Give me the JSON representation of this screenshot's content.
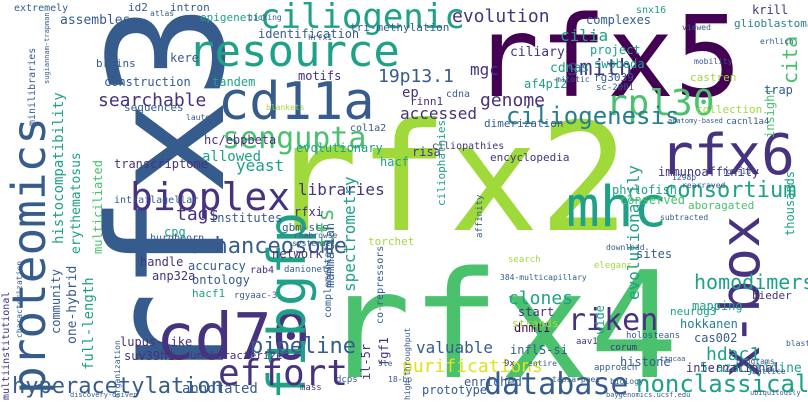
{
  "colors": {
    "lime": "#9fda3a",
    "green": "#4ac16d",
    "teal": "#1fa187",
    "cyan": "#277f8e",
    "blue": "#365c8d",
    "indigo": "#46327e",
    "purple": "#440154",
    "yellow": "#dde318"
  },
  "words": [
    {
      "text": "rfx3",
      "color": "blue",
      "vertical": true
    },
    {
      "text": "rfx5",
      "color": "purple",
      "vertical": false
    },
    {
      "text": "rfx2",
      "color": "lime",
      "vertical": false
    },
    {
      "text": "rfx4",
      "color": "green",
      "vertical": false
    },
    {
      "text": "resource",
      "color": "teal",
      "vertical": false
    },
    {
      "text": "cd11a",
      "color": "blue",
      "vertical": false
    },
    {
      "text": "cd70",
      "color": "indigo",
      "vertical": false
    },
    {
      "text": "proteomics",
      "color": "blue",
      "vertical": true
    },
    {
      "text": "f1bgfp",
      "color": "teal",
      "vertical": true
    },
    {
      "text": "mhc",
      "color": "teal",
      "vertical": false
    },
    {
      "text": "x-box",
      "color": "indigo",
      "vertical": true
    },
    {
      "text": "rfx6",
      "color": "indigo",
      "vertical": false
    },
    {
      "text": "bioplex",
      "color": "indigo",
      "vertical": false
    },
    {
      "text": "effort",
      "color": "indigo",
      "vertical": false
    },
    {
      "text": "database",
      "color": "blue",
      "vertical": false
    },
    {
      "text": "riken",
      "color": "indigo",
      "vertical": false
    },
    {
      "text": "ciliogenic",
      "color": "teal",
      "vertical": false
    },
    {
      "text": "rpl30",
      "color": "green",
      "vertical": false
    },
    {
      "text": "sengupta",
      "color": "green",
      "vertical": false
    },
    {
      "text": "ciliogenesis",
      "color": "cyan",
      "vertical": false
    },
    {
      "text": "enhanceosome",
      "color": "blue",
      "vertical": false
    },
    {
      "text": "hyperacetylation",
      "color": "blue",
      "vertical": false
    },
    {
      "text": "nonclassical",
      "color": "teal",
      "vertical": false
    },
    {
      "text": "pipeline",
      "color": "blue",
      "vertical": false
    },
    {
      "text": "purifications",
      "color": "yellow",
      "vertical": false
    },
    {
      "text": "consortium",
      "color": "teal",
      "vertical": false
    },
    {
      "text": "homodimers",
      "color": "teal",
      "vertical": false
    },
    {
      "text": "evolution",
      "color": "indigo",
      "vertical": false
    },
    {
      "text": "smith",
      "color": "indigo",
      "vertical": false
    },
    {
      "text": "genome",
      "color": "indigo",
      "vertical": false
    },
    {
      "text": "19p13.1",
      "color": "blue",
      "vertical": false
    },
    {
      "text": "searchable",
      "color": "indigo",
      "vertical": false
    },
    {
      "text": "accessed",
      "color": "indigo",
      "vertical": false
    },
    {
      "text": "annotated",
      "color": "blue",
      "vertical": false
    },
    {
      "text": "tags",
      "color": "indigo",
      "vertical": false
    },
    {
      "text": "yeast",
      "color": "teal",
      "vertical": false
    },
    {
      "text": "libraries",
      "color": "indigo",
      "vertical": false
    },
    {
      "text": "valuable",
      "color": "blue",
      "vertical": false
    },
    {
      "text": "clones",
      "color": "teal",
      "vertical": false
    },
    {
      "text": "hdac1",
      "color": "teal",
      "vertical": false
    },
    {
      "text": "5-azacytidine",
      "color": "teal",
      "vertical": false
    },
    {
      "text": "tfs",
      "color": "green",
      "vertical": true
    },
    {
      "text": "spectrometry",
      "color": "teal",
      "vertical": true
    },
    {
      "text": "evolutionarily",
      "color": "teal",
      "vertical": true
    },
    {
      "text": "cilia",
      "color": "teal",
      "vertical": false
    },
    {
      "text": "mgc",
      "color": "indigo",
      "vertical": false
    },
    {
      "text": "ep",
      "color": "indigo",
      "vertical": false
    },
    {
      "text": "cdnas",
      "color": "teal",
      "vertical": false
    },
    {
      "text": "ciliary",
      "color": "indigo",
      "vertical": false
    },
    {
      "text": "histocompatibility",
      "color": "teal",
      "vertical": true
    },
    {
      "text": "erythematosus",
      "color": "teal",
      "vertical": true
    },
    {
      "text": "multiciliated",
      "color": "green",
      "vertical": true
    },
    {
      "text": "full-length",
      "color": "teal",
      "vertical": true
    },
    {
      "text": "one-hybrid",
      "color": "blue",
      "vertical": true
    },
    {
      "text": "community",
      "color": "blue",
      "vertical": true
    },
    {
      "text": "il-5r",
      "color": "indigo",
      "vertical": true
    },
    {
      "text": "fgf1",
      "color": "indigo",
      "vertical": true
    },
    {
      "text": "mammalian",
      "color": "blue",
      "vertical": true
    },
    {
      "text": "cita",
      "color": "green",
      "vertical": true
    },
    {
      "text": "insight",
      "color": "green",
      "vertical": true
    },
    {
      "text": "krill",
      "color": "indigo",
      "vertical": false
    },
    {
      "text": "glioblastoma",
      "color": "cyan",
      "vertical": false
    },
    {
      "text": "allowed",
      "color": "teal",
      "vertical": false
    },
    {
      "text": "hc/ebpbeta",
      "color": "indigo",
      "vertical": false
    },
    {
      "text": "lupus-like",
      "color": "indigo",
      "vertical": false
    },
    {
      "text": "suv39h1",
      "color": "indigo",
      "vertical": false
    },
    {
      "text": "uncharacterized",
      "color": "indigo",
      "vertical": false
    },
    {
      "text": "dnmt1",
      "color": "purple",
      "vertical": false
    },
    {
      "text": "histone",
      "color": "blue",
      "vertical": false
    },
    {
      "text": "enriched",
      "color": "blue",
      "vertical": false
    },
    {
      "text": "prototype",
      "color": "blue",
      "vertical": false
    },
    {
      "text": "international",
      "color": "indigo",
      "vertical": false
    },
    {
      "text": "hokkanen",
      "color": "cyan",
      "vertical": false
    },
    {
      "text": "cas002",
      "color": "blue",
      "vertical": false
    },
    {
      "text": "mapping",
      "color": "teal",
      "vertical": false
    },
    {
      "text": "neurog3",
      "color": "teal",
      "vertical": false
    },
    {
      "text": "wide",
      "color": "teal",
      "vertical": true
    },
    {
      "text": "rinn1",
      "color": "indigo",
      "vertical": false
    },
    {
      "text": "immunoaffinity",
      "color": "indigo",
      "vertical": false
    },
    {
      "text": "aboragated",
      "color": "green",
      "vertical": false
    },
    {
      "text": "phylofish",
      "color": "teal",
      "vertical": false
    },
    {
      "text": "conserved",
      "color": "green",
      "vertical": false
    },
    {
      "text": "risa",
      "color": "indigo",
      "vertical": false
    },
    {
      "text": "encyclopedia",
      "color": "indigo",
      "vertical": false
    },
    {
      "text": "evolutionary",
      "color": "teal",
      "vertical": false
    },
    {
      "text": "dimerization",
      "color": "blue",
      "vertical": false
    },
    {
      "text": "hacf",
      "color": "teal",
      "vertical": false
    },
    {
      "text": "ciliopathies",
      "color": "indigo",
      "vertical": false
    },
    {
      "text": "ciliophathies",
      "color": "teal",
      "vertical": true
    },
    {
      "text": "sites",
      "color": "blue",
      "vertical": false
    },
    {
      "text": "project",
      "color": "teal",
      "vertical": false
    },
    {
      "text": "swoboda",
      "color": "teal",
      "vertical": false
    },
    {
      "text": "rg3039",
      "color": "blue",
      "vertical": false
    },
    {
      "text": "sc-2001",
      "color": "blue",
      "vertical": false
    },
    {
      "text": "af4p12",
      "color": "teal",
      "vertical": false
    },
    {
      "text": "complexes",
      "color": "blue",
      "vertical": false
    },
    {
      "text": "snx16",
      "color": "teal",
      "vertical": false
    },
    {
      "text": "identification",
      "color": "blue",
      "vertical": false
    },
    {
      "text": "tri-methylation",
      "color": "blue",
      "vertical": false
    },
    {
      "text": "motifs",
      "color": "indigo",
      "vertical": false
    },
    {
      "text": "tandem",
      "color": "teal",
      "vertical": false
    },
    {
      "text": "construction",
      "color": "blue",
      "vertical": false
    },
    {
      "text": "transcriptome",
      "color": "indigo",
      "vertical": false
    },
    {
      "text": "sequences",
      "color": "blue",
      "vertical": false
    },
    {
      "text": "kere",
      "color": "blue",
      "vertical": false
    },
    {
      "text": "brains",
      "color": "blue",
      "vertical": false
    },
    {
      "text": "assembles",
      "color": "blue",
      "vertical": false
    },
    {
      "text": "extremely",
      "color": "blue",
      "vertical": false
    },
    {
      "text": "id2",
      "color": "blue",
      "vertical": false
    },
    {
      "text": "intron",
      "color": "blue",
      "vertical": false
    },
    {
      "text": "epigenetic",
      "color": "teal",
      "vertical": false
    },
    {
      "text": "atlas",
      "color": "blue",
      "vertical": false
    },
    {
      "text": "picking",
      "color": "blue",
      "vertical": false
    },
    {
      "text": "viewed",
      "color": "blue",
      "vertical": false
    },
    {
      "text": "mobility",
      "color": "blue",
      "vertical": false
    },
    {
      "text": "castren",
      "color": "lime",
      "vertical": false
    },
    {
      "text": "collection",
      "color": "lime",
      "vertical": false
    },
    {
      "text": "trap",
      "color": "blue",
      "vertical": false
    },
    {
      "text": "cacnl1a4",
      "color": "blue",
      "vertical": false
    },
    {
      "text": "anatomy-based",
      "color": "blue",
      "vertical": false
    },
    {
      "text": "fgf-1b",
      "color": "blue",
      "vertical": false
    },
    {
      "text": "1298p",
      "color": "blue",
      "vertical": false
    },
    {
      "text": "rearrayed",
      "color": "blue",
      "vertical": false
    },
    {
      "text": "subtracted",
      "color": "blue",
      "vertical": false
    },
    {
      "text": "thousands",
      "color": "teal",
      "vertical": true
    },
    {
      "text": "accuracy",
      "color": "blue",
      "vertical": false
    },
    {
      "text": "ontology",
      "color": "blue",
      "vertical": false
    },
    {
      "text": "hacf1",
      "color": "teal",
      "vertical": false
    },
    {
      "text": "rgyaac-3",
      "color": "blue",
      "vertical": false
    },
    {
      "text": "anp32a",
      "color": "indigo",
      "vertical": false
    },
    {
      "text": "handle",
      "color": "indigo",
      "vertical": false
    },
    {
      "text": "institutes",
      "color": "blue",
      "vertical": false
    },
    {
      "text": "gbm-scs",
      "color": "blue",
      "vertical": false
    },
    {
      "text": "network",
      "color": "indigo",
      "vertical": false
    },
    {
      "text": "torchet",
      "color": "lime",
      "vertical": false
    },
    {
      "text": "rab4",
      "color": "indigo",
      "vertical": false
    },
    {
      "text": "danionet",
      "color": "blue",
      "vertical": false
    },
    {
      "text": "complementary",
      "color": "blue",
      "vertical": true
    },
    {
      "text": "inflS-si",
      "color": "blue",
      "vertical": false
    },
    {
      "text": "strands",
      "color": "lime",
      "vertical": false
    },
    {
      "text": "start",
      "color": "indigo",
      "vertical": false
    },
    {
      "text": "aav1",
      "color": "indigo",
      "vertical": false
    },
    {
      "text": "corum",
      "color": "indigo",
      "vertical": false
    },
    {
      "text": "holosteans",
      "color": "blue",
      "vertical": false
    },
    {
      "text": "bieder",
      "color": "indigo",
      "vertical": false
    },
    {
      "text": "programs",
      "color": "blue",
      "vertical": false
    },
    {
      "text": "blastema",
      "color": "blue",
      "vertical": false
    },
    {
      "text": "approach",
      "color": "blue",
      "vertical": false
    },
    {
      "text": "tapia-paez",
      "color": "blue",
      "vertical": false
    },
    {
      "text": "co-repressors",
      "color": "blue",
      "vertical": true
    },
    {
      "text": "cpg",
      "color": "teal",
      "vertical": false
    },
    {
      "text": "rfxi",
      "color": "indigo",
      "vertical": false
    },
    {
      "text": "characterization",
      "color": "blue",
      "vertical": true
    },
    {
      "text": "multiinstitutional",
      "color": "indigo",
      "vertical": true
    },
    {
      "text": "minilibraries",
      "color": "blue",
      "vertical": true
    },
    {
      "text": "sugiannam-trapman",
      "color": "blue",
      "vertical": true
    },
    {
      "text": "col1a2",
      "color": "blue",
      "vertical": false
    },
    {
      "text": "blankets",
      "color": "lime",
      "vertical": false
    },
    {
      "text": "lauter",
      "color": "blue",
      "vertical": false
    },
    {
      "text": "hrfx1",
      "color": "blue",
      "vertical": false
    },
    {
      "text": "cdna",
      "color": "blue",
      "vertical": false
    },
    {
      "text": "mitotic",
      "color": "blue",
      "vertical": false
    },
    {
      "text": "erhlich",
      "color": "blue",
      "vertical": false
    },
    {
      "text": "mass",
      "color": "indigo",
      "vertical": false
    },
    {
      "text": "dcps",
      "color": "blue",
      "vertical": false
    },
    {
      "text": "18-bp",
      "color": "blue",
      "vertical": false
    },
    {
      "text": "high-throughput",
      "color": "blue",
      "vertical": true
    },
    {
      "text": "sle",
      "color": "blue",
      "vertical": false
    },
    {
      "text": "9x",
      "color": "indigo",
      "vertical": false
    },
    {
      "text": "entire",
      "color": "blue",
      "vertical": false
    },
    {
      "text": "384-multicapillary",
      "color": "blue",
      "vertical": false
    },
    {
      "text": "biology",
      "color": "blue",
      "vertical": false
    },
    {
      "text": "buttice",
      "color": "blue",
      "vertical": false
    },
    {
      "text": "ubiquitously",
      "color": "blue",
      "vertical": false
    },
    {
      "text": "ttgcaa",
      "color": "blue",
      "vertical": false
    },
    {
      "text": "organization",
      "color": "blue",
      "vertical": true
    },
    {
      "text": "intraflagellar",
      "color": "blue",
      "vertical": false
    },
    {
      "text": "burghoorn",
      "color": "blue",
      "vertical": false
    },
    {
      "text": "rnabrowse",
      "color": "blue",
      "vertical": false
    },
    {
      "text": "systematic",
      "color": "blue",
      "vertical": false
    },
    {
      "text": "affinity",
      "color": "blue",
      "vertical": true
    },
    {
      "text": "elegans",
      "color": "lime",
      "vertical": false
    },
    {
      "text": "download",
      "color": "blue",
      "vertical": false
    },
    {
      "text": "search",
      "color": "lime",
      "vertical": false
    },
    {
      "text": "discovery-driven",
      "color": "blue",
      "vertical": false
    },
    {
      "text": "baygenomics.ucsf.edu",
      "color": "blue",
      "vertical": false
    }
  ]
}
